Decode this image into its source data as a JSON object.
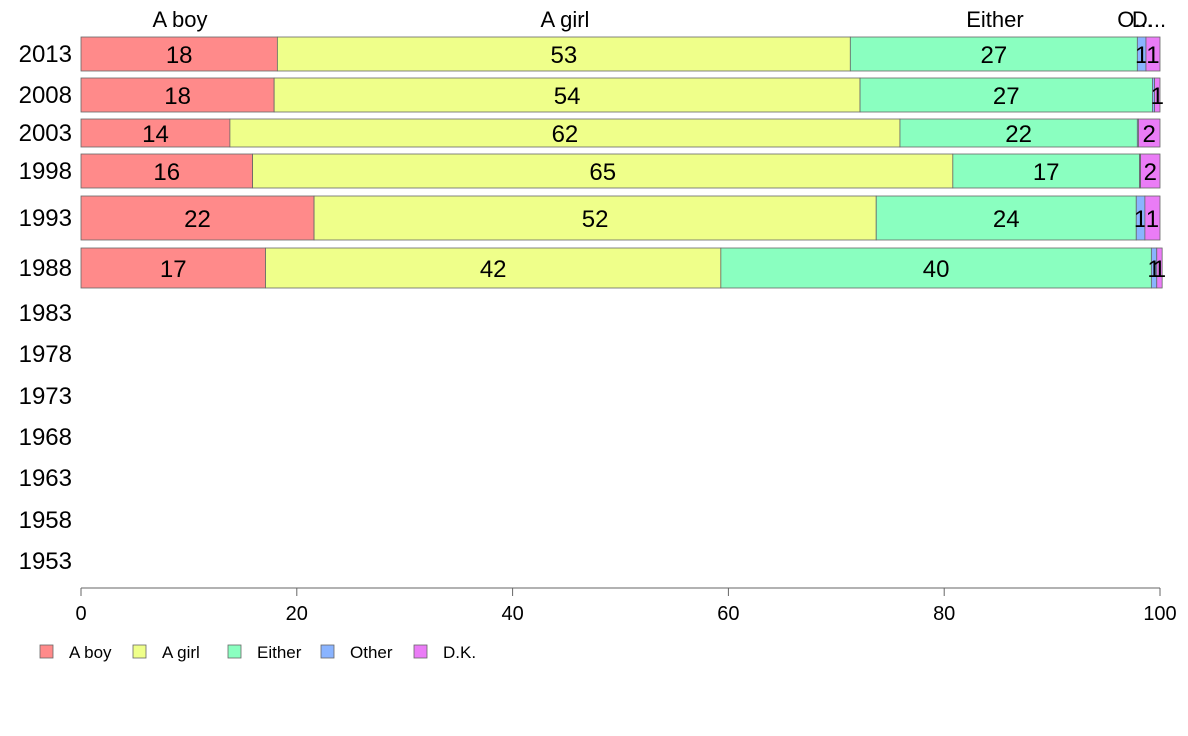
{
  "chart_data": {
    "type": "bar",
    "orientation": "horizontal",
    "stacked": true,
    "title": "",
    "xlabel": "",
    "ylabel": "",
    "xlim": [
      0,
      100
    ],
    "x_ticks": [
      "0",
      "20",
      "40",
      "60",
      "80",
      "100"
    ],
    "grid": false,
    "legend_position": "bottom-left",
    "column_headers": [
      "A boy",
      "A girl",
      "Either",
      "O...",
      "D..."
    ],
    "categories": [
      "2013",
      "2008",
      "2003",
      "1998",
      "1993",
      "1988",
      "1983",
      "1978",
      "1973",
      "1968",
      "1963",
      "1958",
      "1953"
    ],
    "series": [
      {
        "name": "A boy",
        "color": "#ff8a8a",
        "values": [
          18.2,
          17.9,
          13.8,
          15.9,
          21.6,
          17.1,
          null,
          null,
          null,
          null,
          null,
          null,
          null
        ],
        "labels": [
          "18",
          "18",
          "14",
          "16",
          "22",
          "17",
          null,
          null,
          null,
          null,
          null,
          null,
          null
        ]
      },
      {
        "name": "A girl",
        "color": "#efff8a",
        "values": [
          53.1,
          54.3,
          62.1,
          64.9,
          52.1,
          42.2,
          null,
          null,
          null,
          null,
          null,
          null,
          null
        ],
        "labels": [
          "53",
          "54",
          "62",
          "65",
          "52",
          "42",
          null,
          null,
          null,
          null,
          null,
          null,
          null
        ]
      },
      {
        "name": "Either",
        "color": "#8affc0",
        "values": [
          26.6,
          27.1,
          22.0,
          17.3,
          24.1,
          39.9,
          null,
          null,
          null,
          null,
          null,
          null,
          null
        ],
        "labels": [
          "27",
          "27",
          "22",
          "17",
          "24",
          "40",
          null,
          null,
          null,
          null,
          null,
          null,
          null
        ]
      },
      {
        "name": "Other",
        "color": "#8ab4ff",
        "values": [
          0.8,
          0.2,
          0.1,
          0.1,
          0.8,
          0.5,
          null,
          null,
          null,
          null,
          null,
          null,
          null
        ],
        "labels": [
          "1",
          null,
          null,
          null,
          "1",
          "1",
          null,
          null,
          null,
          null,
          null,
          null,
          null
        ]
      },
      {
        "name": "D.K.",
        "color": "#ea7cf6",
        "values": [
          1.3,
          0.5,
          2.0,
          1.8,
          1.4,
          0.5,
          null,
          null,
          null,
          null,
          null,
          null,
          null
        ],
        "labels": [
          "1",
          "1",
          "2",
          "2",
          "1",
          "1",
          null,
          null,
          null,
          null,
          null,
          null,
          null
        ]
      }
    ]
  }
}
